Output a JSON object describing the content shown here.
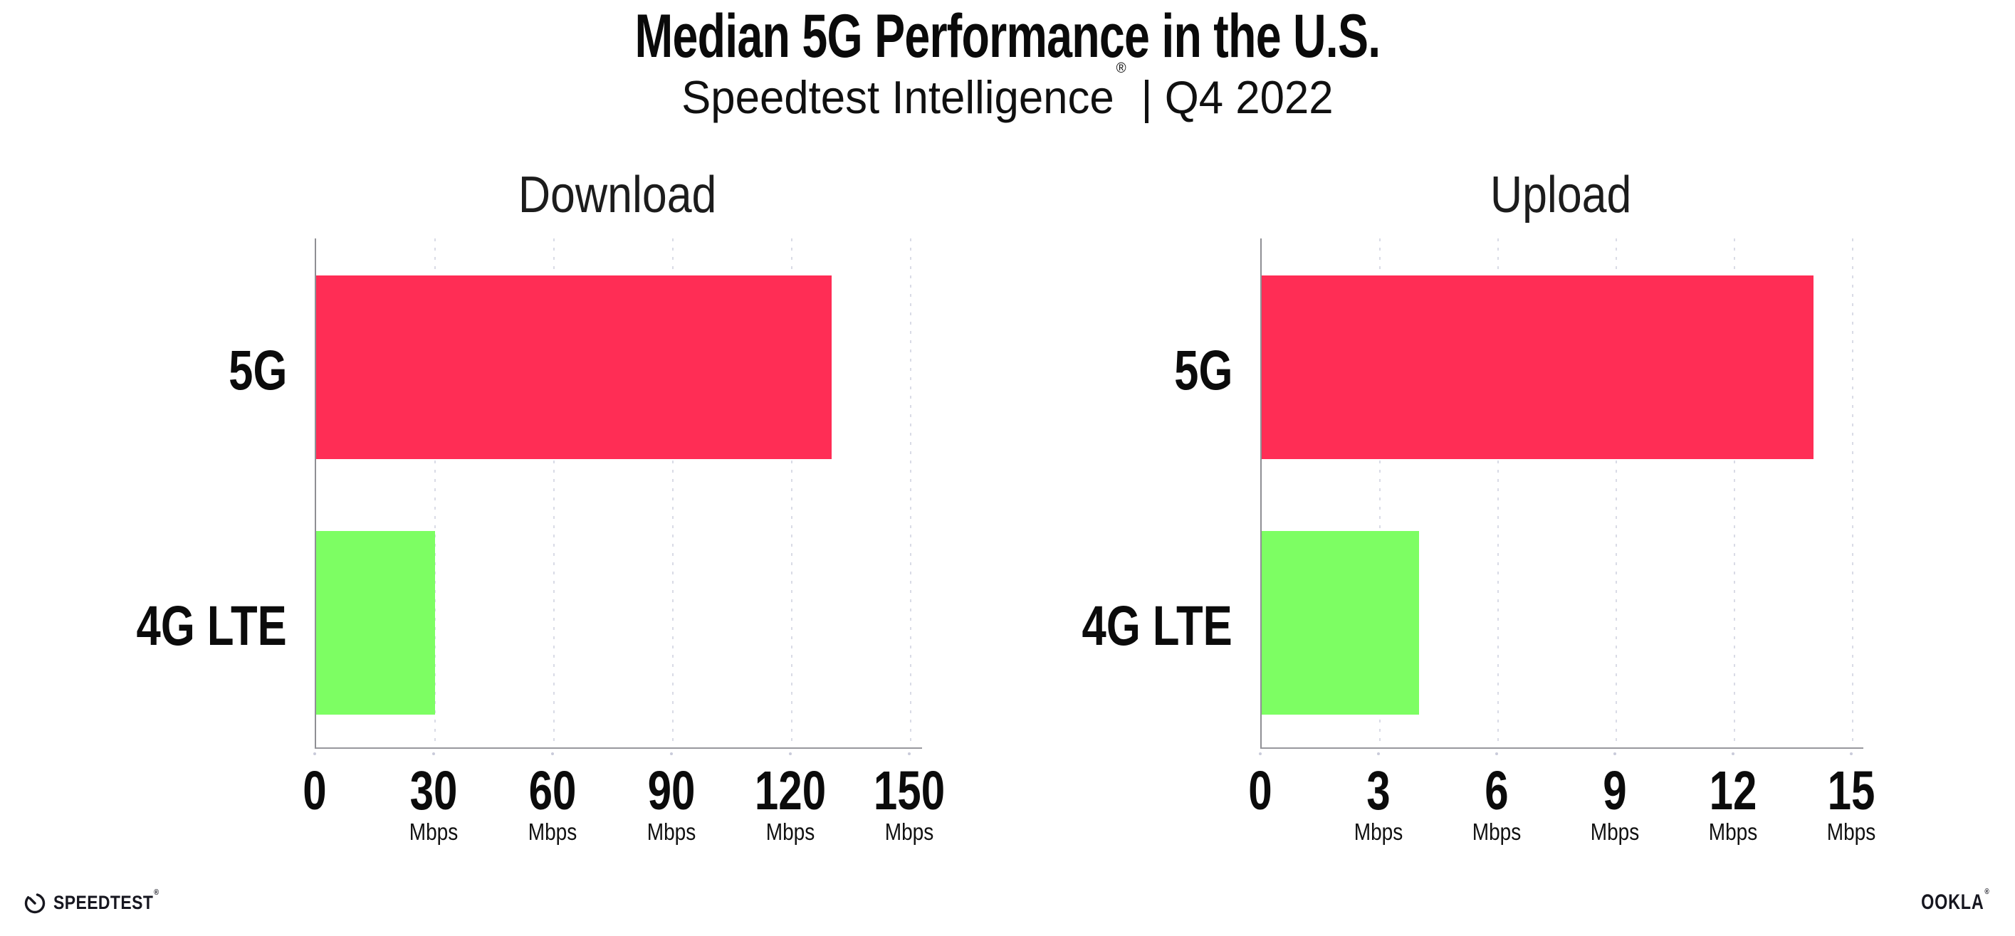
{
  "header": {
    "title": "Median 5G Performance in the U.S.",
    "subtitle_brand": "Speedtest Intelligence",
    "subtitle_reg": "®",
    "subtitle_rest": "| Q4 2022"
  },
  "chart_data": [
    {
      "type": "bar",
      "orientation": "horizontal",
      "title": "Download",
      "categories": [
        "5G",
        "4G LTE"
      ],
      "values": [
        130,
        30
      ],
      "unit": "Mbps",
      "xticks": [
        0,
        30,
        60,
        90,
        120,
        150
      ],
      "xlim": [
        0,
        153
      ],
      "grid": "vertical-dotted",
      "legend": "none",
      "bar_colors": [
        "#FF2D55",
        "#7DFE63"
      ]
    },
    {
      "type": "bar",
      "orientation": "horizontal",
      "title": "Upload",
      "categories": [
        "5G",
        "4G LTE"
      ],
      "values": [
        14,
        4
      ],
      "unit": "Mbps",
      "xticks": [
        0,
        3,
        6,
        9,
        12,
        15
      ],
      "xlim": [
        0,
        15.3
      ],
      "grid": "vertical-dotted",
      "legend": "none",
      "bar_colors": [
        "#FF2D55",
        "#7DFE63"
      ]
    }
  ],
  "footer": {
    "speedtest_label": "SPEEDTEST",
    "speedtest_reg": "®",
    "ookla_label": "OOKLA",
    "ookla_reg": "®"
  },
  "colors": {
    "bar_5g": "#FF2D55",
    "bar_4g_lte": "#7DFE63",
    "grid_dot": "#D9DBE6",
    "axis_spine": "#95959A",
    "text": "#0B0B0B",
    "background": "#FFFFFF"
  }
}
